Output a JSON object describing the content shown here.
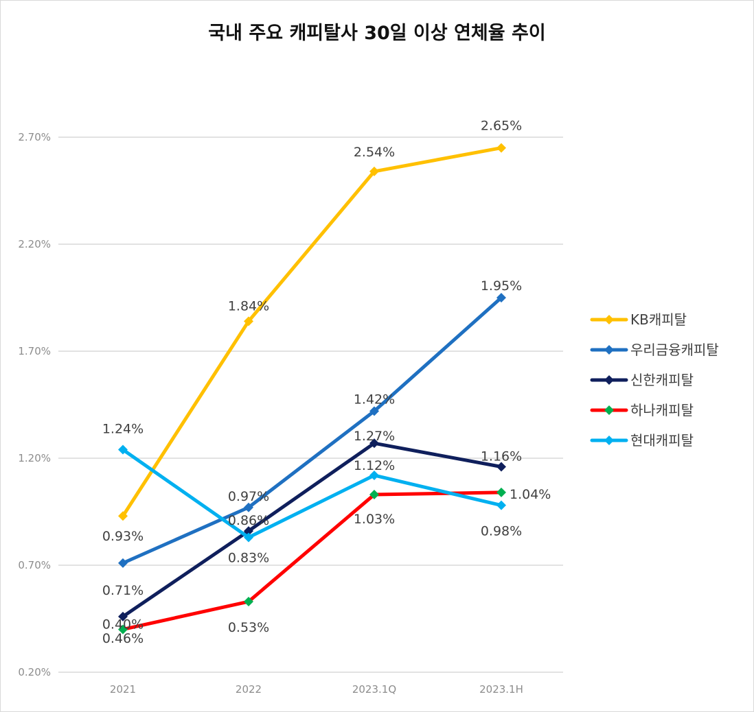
{
  "chart_data": {
    "type": "line",
    "title": "국내 주요 캐피탈사 30일 이상 연체율 추이",
    "categories": [
      "2021",
      "2022",
      "2023.1Q",
      "2023.1H"
    ],
    "y_ticks": [
      "0.20%",
      "0.70%",
      "1.20%",
      "1.70%",
      "2.20%",
      "2.70%"
    ],
    "ylim": [
      0.2,
      2.7
    ],
    "y_unit": "%",
    "grid": true,
    "legend_position": "right",
    "highlight_label_color": "#FF0000",
    "series": [
      {
        "name": "KB캐피탈",
        "color": "#FFC000",
        "marker_color": "#FFC000",
        "values": [
          0.93,
          1.84,
          2.54,
          2.65
        ],
        "labels": [
          "0.93%",
          "1.84%",
          "2.54%",
          "2.65%"
        ]
      },
      {
        "name": "우리금융캐피탈",
        "color": "#1F70C1",
        "marker_color": "#1F70C1",
        "values": [
          0.71,
          0.97,
          1.42,
          1.95
        ],
        "labels": [
          "0.71%",
          "0.97%",
          "1.42%",
          "1.95%"
        ]
      },
      {
        "name": "신한캐피탈",
        "color": "#0F1F5C",
        "marker_color": "#0F1F5C",
        "values": [
          0.46,
          0.86,
          1.27,
          1.16
        ],
        "labels": [
          "0.46%",
          "0.86%",
          "1.27%",
          "1.16%"
        ]
      },
      {
        "name": "하나캐피탈",
        "color": "#FF0000",
        "marker_color": "#00B050",
        "values": [
          0.4,
          0.53,
          1.03,
          1.04
        ],
        "labels": [
          "0.40%",
          "0.53%",
          "1.03%",
          "1.04%"
        ]
      },
      {
        "name": "현대캐피탈",
        "color": "#00B0F0",
        "marker_color": "#00B0F0",
        "values": [
          1.24,
          0.83,
          1.12,
          0.98
        ],
        "labels": [
          "1.24%",
          "0.83%",
          "1.12%",
          "0.98%"
        ]
      }
    ]
  }
}
